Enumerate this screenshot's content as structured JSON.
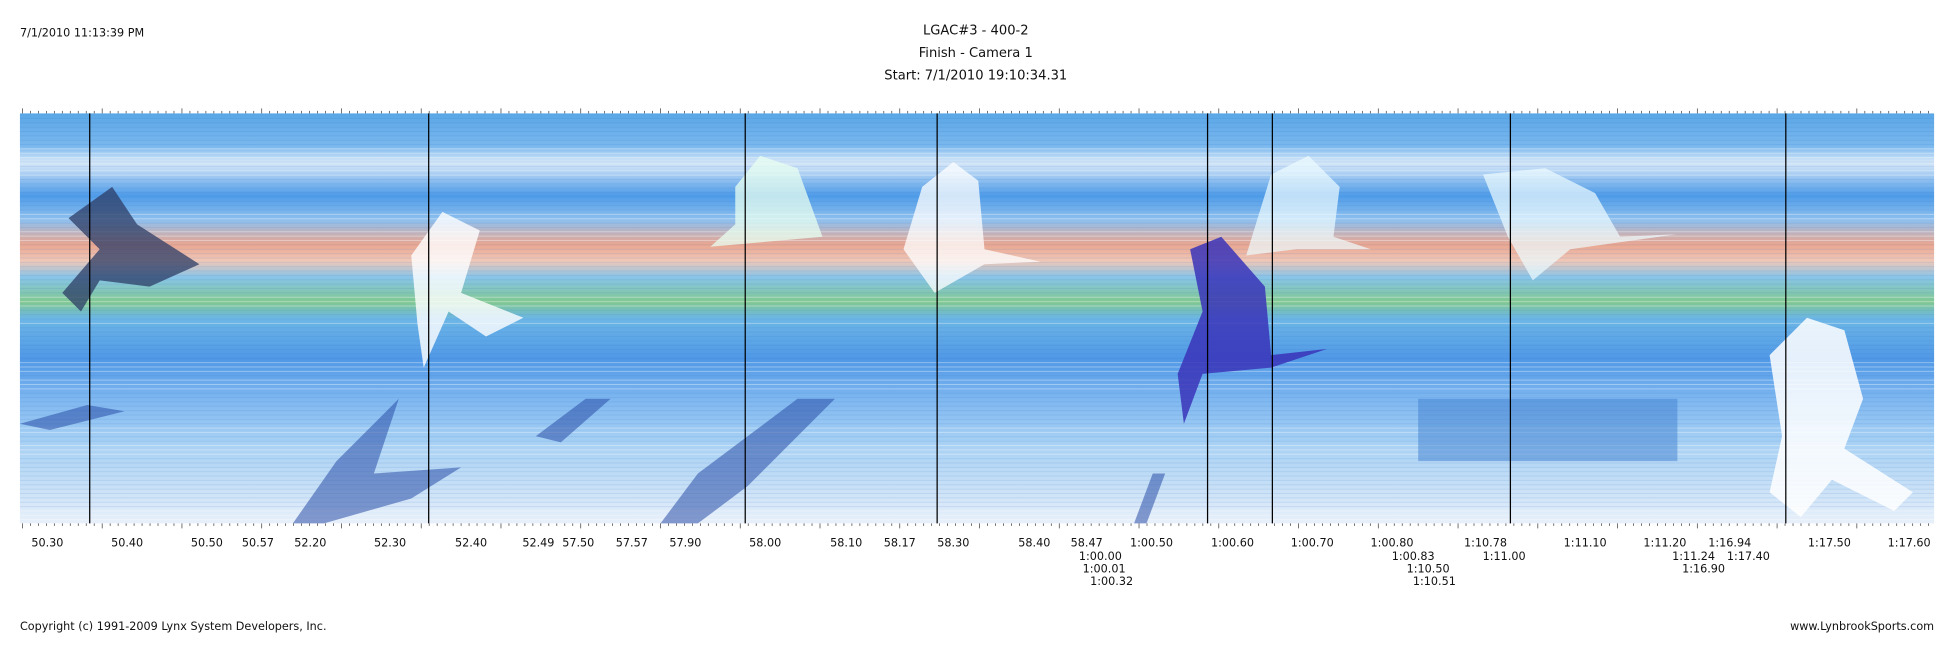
{
  "header": {
    "timestamp": "7/1/2010 11:13:39 PM",
    "title": "LGAC#3 - 400-2",
    "subtitle": "Finish - Camera 1",
    "start": "Start: 7/1/2010 19:10:34.31"
  },
  "time_labels": [
    "50.30",
    "50.40",
    "50.50",
    "50.57",
    "52.20",
    "52.30",
    "52.40",
    "52.49",
    "57.50",
    "57.57",
    "57.90",
    "58.00",
    "58.10",
    "58.17",
    "58.30",
    "58.40",
    "58.47",
    "1:00.00",
    "1:00.01",
    "1:00.32",
    "1:00.50",
    "1:00.60",
    "1:00.70",
    "1:00.80",
    "1:00.83",
    "1:10.50",
    "1:10.51",
    "1:10.78",
    "1:11.00",
    "1:11.10",
    "1:11.20",
    "1:11.24",
    "1:16.90",
    "1:16.94",
    "1:17.40",
    "1:17.50",
    "1:17.60"
  ],
  "footer": {
    "copyright": "Copyright (c) 1991-2009 Lynx System Developers, Inc.",
    "website": "www.LynbrookSports.com"
  }
}
